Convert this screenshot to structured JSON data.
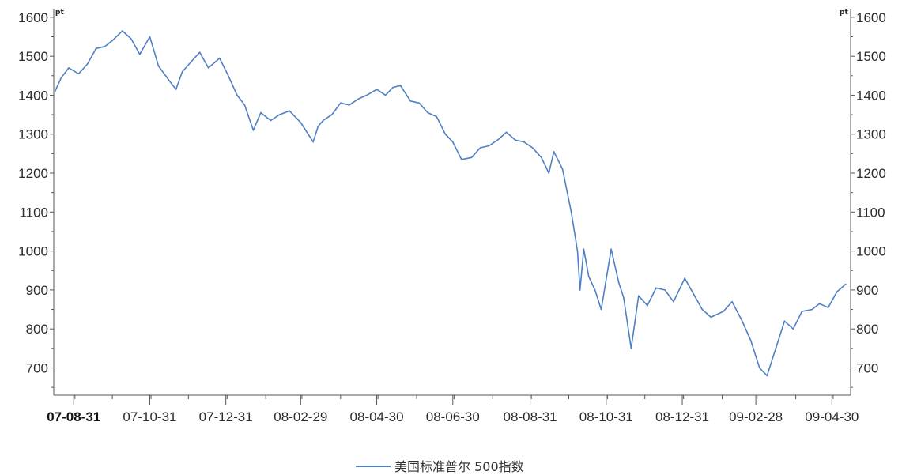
{
  "chart_data": {
    "type": "line",
    "title": "",
    "xlabel": "",
    "ylabel": "",
    "unit_left": "pt",
    "unit_right": "pt",
    "ylim": [
      630,
      1620
    ],
    "y_ticks": [
      700,
      800,
      900,
      1000,
      1100,
      1200,
      1300,
      1400,
      1500,
      1600
    ],
    "x_ticks": [
      "07-08-31",
      "07-10-31",
      "07-12-31",
      "08-02-29",
      "08-04-30",
      "08-06-30",
      "08-08-31",
      "08-10-31",
      "08-12-31",
      "09-02-28",
      "09-04-30"
    ],
    "x_range": [
      "2007-08-15",
      "2009-05-15"
    ],
    "grid": false,
    "legend_position": "bottom-center",
    "series_color": "#4f7fc4",
    "series": [
      {
        "name": "美国标准普尔 500指数",
        "x": [
          "2007-08-16",
          "2007-08-21",
          "2007-08-27",
          "2007-09-04",
          "2007-09-11",
          "2007-09-18",
          "2007-09-25",
          "2007-10-01",
          "2007-10-09",
          "2007-10-16",
          "2007-10-23",
          "2007-10-31",
          "2007-11-07",
          "2007-11-15",
          "2007-11-21",
          "2007-11-26",
          "2007-12-03",
          "2007-12-10",
          "2007-12-17",
          "2007-12-26",
          "2008-01-02",
          "2008-01-09",
          "2008-01-15",
          "2008-01-22",
          "2008-01-28",
          "2008-02-05",
          "2008-02-12",
          "2008-02-20",
          "2008-02-29",
          "2008-03-07",
          "2008-03-10",
          "2008-03-14",
          "2008-03-18",
          "2008-03-25",
          "2008-04-01",
          "2008-04-08",
          "2008-04-15",
          "2008-04-22",
          "2008-04-30",
          "2008-05-07",
          "2008-05-13",
          "2008-05-19",
          "2008-05-27",
          "2008-06-03",
          "2008-06-10",
          "2008-06-17",
          "2008-06-24",
          "2008-06-30",
          "2008-07-07",
          "2008-07-15",
          "2008-07-22",
          "2008-07-29",
          "2008-08-05",
          "2008-08-12",
          "2008-08-19",
          "2008-08-26",
          "2008-09-02",
          "2008-09-09",
          "2008-09-15",
          "2008-09-19",
          "2008-09-26",
          "2008-10-03",
          "2008-10-08",
          "2008-10-10",
          "2008-10-13",
          "2008-10-17",
          "2008-10-22",
          "2008-10-27",
          "2008-11-04",
          "2008-11-10",
          "2008-11-14",
          "2008-11-20",
          "2008-11-26",
          "2008-12-03",
          "2008-12-10",
          "2008-12-17",
          "2008-12-24",
          "2009-01-02",
          "2009-01-09",
          "2009-01-16",
          "2009-01-23",
          "2009-02-02",
          "2009-02-09",
          "2009-02-17",
          "2009-02-24",
          "2009-03-03",
          "2009-03-09",
          "2009-03-16",
          "2009-03-23",
          "2009-03-30",
          "2009-04-06",
          "2009-04-14",
          "2009-04-20",
          "2009-04-27",
          "2009-05-04",
          "2009-05-11"
        ],
        "values": [
          1410,
          1445,
          1470,
          1455,
          1480,
          1520,
          1525,
          1540,
          1565,
          1545,
          1505,
          1550,
          1475,
          1440,
          1415,
          1460,
          1485,
          1510,
          1470,
          1495,
          1450,
          1400,
          1375,
          1310,
          1355,
          1335,
          1350,
          1360,
          1330,
          1295,
          1280,
          1320,
          1335,
          1350,
          1380,
          1375,
          1390,
          1400,
          1415,
          1400,
          1420,
          1425,
          1385,
          1380,
          1355,
          1345,
          1300,
          1280,
          1235,
          1240,
          1265,
          1270,
          1285,
          1305,
          1285,
          1280,
          1265,
          1240,
          1200,
          1255,
          1210,
          1100,
          1000,
          900,
          1005,
          935,
          900,
          850,
          1005,
          920,
          880,
          750,
          885,
          860,
          905,
          900,
          870,
          930,
          890,
          850,
          830,
          845,
          870,
          820,
          770,
          700,
          680,
          750,
          820,
          800,
          845,
          850,
          865,
          855,
          895,
          915
        ]
      }
    ]
  }
}
